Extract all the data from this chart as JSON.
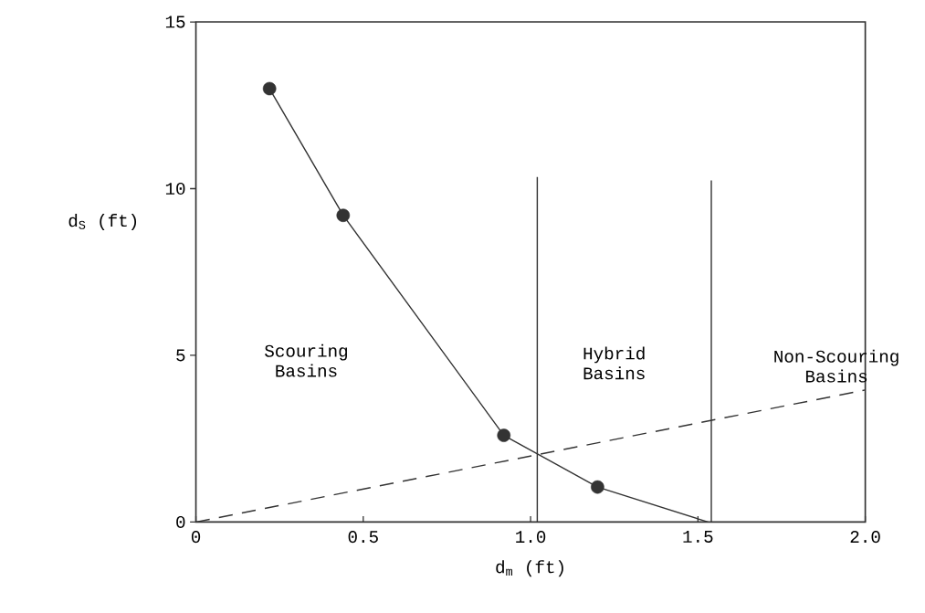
{
  "chart_data": {
    "type": "line",
    "xlabel": "d$_{m}$ (ft)",
    "ylabel": "d$_{S}$ (ft)",
    "annotations": [
      "Scouring Basins",
      "Hybrid Basins",
      "Non-Scouring Basins"
    ],
    "series": [
      {
        "color": "#333333",
        "x": [
          0.22,
          0.44,
          0.92,
          1.2,
          1.53
        ],
        "values": [
          13.0,
          9.2,
          2.6,
          1.05,
          0
        ],
        "marker": "none",
        "line_style": "solid"
      },
      {
        "type": "scatter",
        "color": "#333333",
        "x": [
          0.22,
          0.44,
          0.92,
          1.2
        ],
        "values": [
          13.0,
          9.2,
          2.6,
          1.05
        ],
        "marker": "circle"
      },
      {
        "color": "#333333",
        "x": [
          0,
          2.0
        ],
        "values": [
          0,
          3.96
        ],
        "marker": "none",
        "line_style": "dashed"
      },
      {
        "color": "#333333",
        "x": [
          1.02,
          1.02
        ],
        "values": [
          0,
          10.35
        ],
        "marker": "none",
        "line_style": "solid"
      },
      {
        "color": "#333333",
        "x": [
          1.54,
          1.54
        ],
        "values": [
          0,
          10.25
        ],
        "marker": "none",
        "line_style": "solid"
      }
    ],
    "xlim": [
      0,
      2.0
    ],
    "ylim": [
      0,
      15
    ],
    "xticks": [
      0,
      0.5,
      {
        "value": 1.0,
        "label": "1.0"
      },
      1.5,
      {
        "value": 2.0,
        "label": "2.0"
      }
    ],
    "yticks": [
      0,
      5,
      10,
      15
    ],
    "grid": false
  }
}
